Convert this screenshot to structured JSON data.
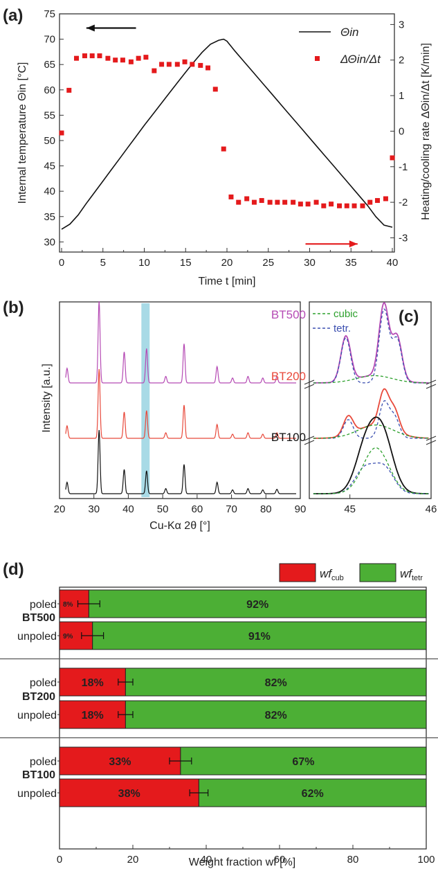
{
  "chart_data": [
    {
      "panel": "(a)",
      "type": "line",
      "xlabel": "Time t [min]",
      "ylabel": "Internal temperature Θin [°C]",
      "y2label": "Heating/cooling rate ΔΘin/Δt [K/min]",
      "xlim": [
        0,
        40
      ],
      "ylim": [
        28,
        75
      ],
      "y2lim": [
        -3.4,
        3.3
      ],
      "xticks": [
        "0",
        "5",
        "10",
        "15",
        "20",
        "25",
        "30",
        "35",
        "40"
      ],
      "yticks": [
        "30",
        "35",
        "40",
        "45",
        "50",
        "55",
        "60",
        "65",
        "70",
        "75"
      ],
      "y2ticks": [
        "-3",
        "-2",
        "-1",
        "0",
        "1",
        "2",
        "3"
      ],
      "legend_position": "top-right",
      "series": [
        {
          "name": "Θin",
          "axis": "left",
          "style": "line",
          "color": "#111111",
          "x": [
            0,
            1,
            2,
            3,
            4,
            5,
            6,
            7,
            8,
            9,
            10,
            11,
            12,
            13,
            14,
            15,
            16,
            17,
            18,
            19,
            19.6,
            20,
            21,
            22,
            23,
            24,
            25,
            26,
            27,
            28,
            29,
            30,
            31,
            32,
            33,
            34,
            35,
            36,
            37,
            38,
            39,
            40
          ],
          "values": [
            32.5,
            33.5,
            35.3,
            37.6,
            39.8,
            42.0,
            44.2,
            46.4,
            48.6,
            50.8,
            53.0,
            55.1,
            57.2,
            59.3,
            61.4,
            63.5,
            65.5,
            67.4,
            69.0,
            69.8,
            70.0,
            69.6,
            67.6,
            65.7,
            63.8,
            61.9,
            60.0,
            58.1,
            56.2,
            54.3,
            52.4,
            50.5,
            48.6,
            46.7,
            44.8,
            42.9,
            41.0,
            39.1,
            37.2,
            35.0,
            33.3,
            32.9
          ]
        },
        {
          "name": "ΔΘin/Δt",
          "axis": "right",
          "style": "markers",
          "color": "#e41a1c",
          "x": [
            0,
            0.9,
            1.8,
            2.8,
            3.7,
            4.6,
            5.6,
            6.5,
            7.4,
            8.4,
            9.3,
            10.2,
            11.2,
            12.1,
            13.0,
            14.0,
            14.9,
            15.8,
            16.8,
            17.7,
            18.6,
            19.6,
            20.5,
            21.4,
            22.4,
            23.3,
            24.2,
            25.2,
            26.1,
            27.0,
            28.0,
            28.9,
            29.8,
            30.8,
            31.7,
            32.6,
            33.6,
            34.5,
            35.4,
            36.4,
            37.3,
            38.2,
            39.2,
            40
          ],
          "values": [
            -0.05,
            1.15,
            2.05,
            2.12,
            2.12,
            2.12,
            2.05,
            2.0,
            2.0,
            1.95,
            2.05,
            2.08,
            1.7,
            1.88,
            1.88,
            1.88,
            1.95,
            1.88,
            1.85,
            1.78,
            1.18,
            -0.5,
            -1.85,
            -2.0,
            -1.9,
            -2.0,
            -1.95,
            -2.0,
            -2.0,
            -2.0,
            -2.0,
            -2.05,
            -2.05,
            -2.0,
            -2.1,
            -2.05,
            -2.1,
            -2.1,
            -2.1,
            -2.1,
            -2.0,
            -1.95,
            -1.9,
            -0.75
          ]
        }
      ],
      "arrows": [
        {
          "direction": "left",
          "color": "#111111",
          "x_range": [
            3.0,
            9.0
          ],
          "y": 72.2
        },
        {
          "direction": "right",
          "color": "#e41a1c",
          "x_range": [
            29.5,
            35.8
          ],
          "y": 29.6
        }
      ]
    },
    {
      "panel": "(b)",
      "type": "line",
      "xlabel": "Cu-Kα 2θ [°]",
      "ylabel": "Intensity [a.u.]",
      "xlim": [
        20,
        90
      ],
      "xticks": [
        "20",
        "30",
        "40",
        "50",
        "60",
        "70",
        "80",
        "90"
      ],
      "highlight_band_x": [
        43.8,
        46.2
      ],
      "highlight_color": "#9fd6e3",
      "peak_positions": [
        22.2,
        31.5,
        38.8,
        45.3,
        50.9,
        56.2,
        65.8,
        70.3,
        74.8,
        79.1,
        83.2
      ],
      "series": [
        {
          "name": "BT500",
          "color": "#b54ab4",
          "peak_heights": [
            0.18,
            1.0,
            0.38,
            0.42,
            0.08,
            0.48,
            0.2,
            0.06,
            0.08,
            0.06,
            0.08
          ]
        },
        {
          "name": "BT200",
          "color": "#e8493b",
          "peak_heights": [
            0.18,
            1.0,
            0.38,
            0.4,
            0.08,
            0.48,
            0.2,
            0.06,
            0.08,
            0.06,
            0.08
          ]
        },
        {
          "name": "BT100",
          "color": "#111111",
          "peak_heights": [
            0.18,
            1.0,
            0.38,
            0.36,
            0.08,
            0.46,
            0.18,
            0.06,
            0.08,
            0.06,
            0.07
          ]
        }
      ]
    },
    {
      "panel": "(c)",
      "type": "line",
      "xlim": [
        44.5,
        46
      ],
      "xticks": [
        "45",
        "46"
      ],
      "legend": [
        {
          "label": "cubic",
          "color": "#2ca02c",
          "style": "dashed"
        },
        {
          "label": "tetr.",
          "color": "#3b4fb0",
          "style": "dashed"
        }
      ],
      "fits": [
        {
          "sample": "BT500",
          "measured_color": "#b54ab4",
          "tetr_peaks": [
            {
              "x": 44.95,
              "h": 0.62
            },
            {
              "x": 45.42,
              "h": 1.0
            },
            {
              "x": 45.58,
              "h": 0.6
            }
          ],
          "cubic_peak": {
            "x": 45.3,
            "h": 0.1
          }
        },
        {
          "sample": "BT200",
          "measured_color": "#e8493b",
          "tetr_peaks": [
            {
              "x": 44.98,
              "h": 0.45
            },
            {
              "x": 45.42,
              "h": 0.85
            },
            {
              "x": 45.55,
              "h": 0.5
            }
          ],
          "cubic_peak": {
            "x": 45.32,
            "h": 0.32
          }
        },
        {
          "sample": "BT100",
          "measured_color": "#111111",
          "tetr_peaks": [
            {
              "x": 45.18,
              "h": 0.45
            },
            {
              "x": 45.42,
              "h": 0.48
            }
          ],
          "cubic_peak": {
            "x": 45.32,
            "h": 0.85
          }
        }
      ]
    },
    {
      "panel": "(d)",
      "type": "bar",
      "orientation": "horizontal",
      "stacked": true,
      "xlabel": "Weight fraction wf [%]",
      "xlim": [
        0,
        100
      ],
      "xticks": [
        "0",
        "20",
        "40",
        "60",
        "80",
        "100"
      ],
      "legend": [
        {
          "label": "wf",
          "sub": "cub",
          "color": "#e41a1c"
        },
        {
          "label": "wf",
          "sub": "tetr",
          "color": "#4caf35"
        }
      ],
      "groups": [
        {
          "sample": "BT500",
          "bars": [
            {
              "label": "poled",
              "cub": 8,
              "tetr": 92,
              "cub_text": "8%",
              "tetr_text": "92%",
              "err": 3
            },
            {
              "label": "unpoled",
              "cub": 9,
              "tetr": 91,
              "cub_text": "9%",
              "tetr_text": "91%",
              "err": 3
            }
          ]
        },
        {
          "sample": "BT200",
          "bars": [
            {
              "label": "poled",
              "cub": 18,
              "tetr": 82,
              "cub_text": "18%",
              "tetr_text": "82%",
              "err": 2
            },
            {
              "label": "unpoled",
              "cub": 18,
              "tetr": 82,
              "cub_text": "18%",
              "tetr_text": "82%",
              "err": 2
            }
          ]
        },
        {
          "sample": "BT100",
          "bars": [
            {
              "label": "poled",
              "cub": 33,
              "tetr": 67,
              "cub_text": "33%",
              "tetr_text": "67%",
              "err": 3
            },
            {
              "label": "unpoled",
              "cub": 38,
              "tetr": 62,
              "cub_text": "38%",
              "tetr_text": "62%",
              "err": 2.5
            }
          ]
        }
      ]
    }
  ]
}
